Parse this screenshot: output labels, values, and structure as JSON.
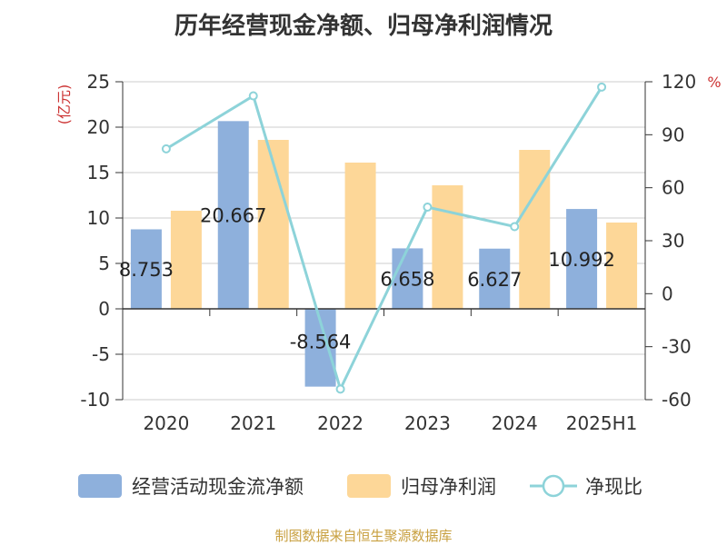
{
  "chart_data": {
    "type": "bar",
    "title": "历年经营现金净额、归母净利润情况",
    "categories": [
      "2020",
      "2021",
      "2022",
      "2023",
      "2024",
      "2025H1"
    ],
    "y_left": {
      "unit": "(亿元)",
      "min": -10,
      "max": 25,
      "ticks": [
        "-10",
        "-5",
        "0",
        "5",
        "10",
        "15",
        "20",
        "25"
      ]
    },
    "y_right": {
      "unit": "%",
      "min": -60,
      "max": 120,
      "ticks": [
        "-60",
        "-30",
        "0",
        "30",
        "60",
        "90",
        "120"
      ]
    },
    "series": [
      {
        "name": "经营活动现金流净额",
        "type": "bar",
        "axis": "left",
        "color": "#8eb0dc",
        "values": [
          8.753,
          20.667,
          -8.564,
          6.658,
          6.627,
          10.992
        ],
        "labels": [
          "8.753",
          "20.667",
          "-8.564",
          "6.658",
          "6.627",
          "10.992"
        ]
      },
      {
        "name": "归母净利润",
        "type": "bar",
        "axis": "left",
        "color": "#fdd798",
        "values": [
          10.8,
          18.6,
          16.1,
          13.6,
          17.5,
          9.5
        ]
      },
      {
        "name": "净现比",
        "type": "line",
        "axis": "right",
        "color": "#8dd3d9",
        "values": [
          82,
          112,
          -54,
          49,
          38,
          117
        ]
      }
    ],
    "grid": true,
    "legend_position": "bottom"
  },
  "source_text": "制图数据来自恒生聚源数据库"
}
